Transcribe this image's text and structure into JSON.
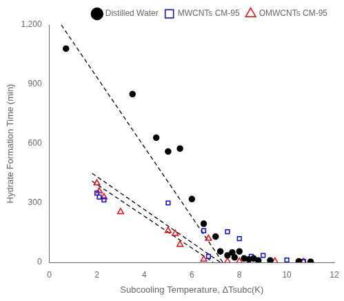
{
  "chart_data": {
    "type": "scatter",
    "x_label": "Subcooling Temperature, ΔTsubc(K)",
    "y_label": "Hydrate Formation Time (min)",
    "xlim": [
      0,
      12
    ],
    "ylim": [
      0,
      1200
    ],
    "xticks": [
      0,
      2,
      4,
      6,
      8,
      10,
      12
    ],
    "yticks": [
      0,
      300,
      600,
      900,
      1200
    ],
    "grid": false,
    "legend": "upper right",
    "series": [
      {
        "type": "line",
        "line_style": "dashed",
        "color": "black",
        "x": [
          0.5,
          7.3
        ],
        "values": [
          1200,
          0
        ]
      },
      {
        "type": "line",
        "line_style": "dashed",
        "color": "black",
        "x": [
          1.8,
          7.2
        ],
        "values": [
          450,
          0
        ]
      },
      {
        "type": "line",
        "line_style": "dashed",
        "color": "black",
        "x": [
          1.8,
          6.9
        ],
        "values": [
          410,
          0
        ]
      },
      {
        "type": "scatter",
        "name": "Distilled Water",
        "color": "black",
        "marker": "circle",
        "x": [
          0.7,
          3.5,
          4.5,
          5.0,
          5.5,
          6.0,
          6.5,
          7.0,
          7.2,
          7.5,
          7.7,
          7.8,
          8.0,
          8.2,
          8.4,
          8.6,
          8.8,
          9.3,
          10.5,
          11.0
        ],
        "values": [
          1080,
          850,
          630,
          560,
          575,
          320,
          195,
          130,
          55,
          35,
          50,
          25,
          55,
          20,
          15,
          20,
          10,
          10,
          5,
          3
        ]
      },
      {
        "type": "scatter",
        "name": "MWCNTs CM-95",
        "color": "blue",
        "marker": "open_square",
        "x": [
          2.0,
          2.1,
          2.3,
          5.0,
          6.5,
          6.7,
          7.5,
          8.0,
          8.5,
          9.0,
          10.0,
          10.7
        ],
        "values": [
          350,
          330,
          315,
          300,
          160,
          30,
          155,
          120,
          30,
          35,
          12,
          5
        ]
      },
      {
        "type": "scatter",
        "name": "OMWCNTs CM-95",
        "color": "red",
        "marker": "open_triangle",
        "x": [
          2.0,
          2.1,
          2.3,
          3.0,
          5.0,
          5.3,
          5.5,
          6.5,
          6.7,
          7.5,
          8.0,
          9.5,
          10.7
        ],
        "values": [
          400,
          360,
          330,
          255,
          160,
          145,
          90,
          15,
          120,
          5,
          5,
          5,
          3
        ]
      }
    ]
  }
}
